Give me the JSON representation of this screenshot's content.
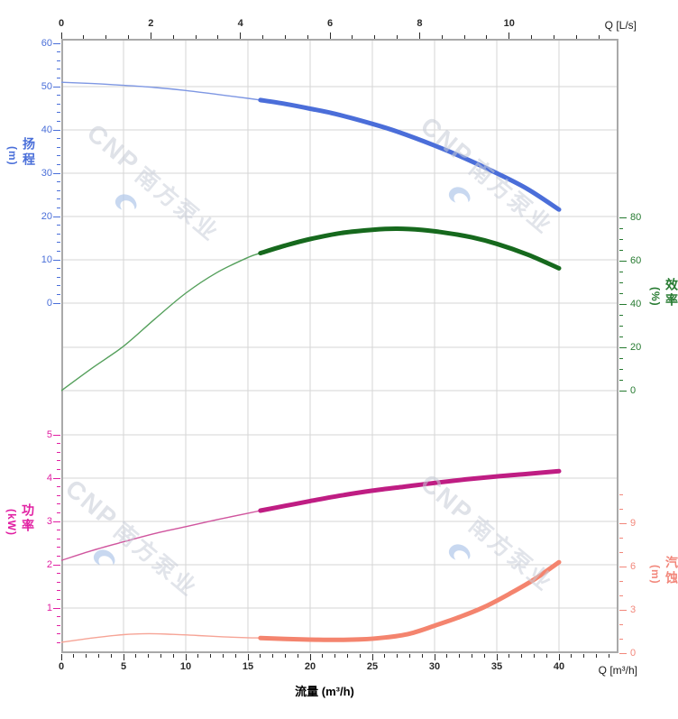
{
  "page": {
    "background": "#ffffff"
  },
  "watermark": {
    "brand": "CNP",
    "brand_cn": "南方泵业"
  },
  "chart_data": {
    "type": "line",
    "title": "",
    "xlabel": "流量 (m³/h)",
    "x_axis_top": {
      "label": "Q [L/s]",
      "majors": [
        0,
        2,
        4,
        6,
        8,
        10
      ],
      "minor_step": 0.5,
      "minor_range": [
        0,
        12
      ],
      "range": [
        0,
        12.44
      ],
      "color": "#2a2a2a"
    },
    "x_axis_bottom": {
      "label": "Q [m³/h]",
      "majors": [
        0,
        5,
        10,
        15,
        20,
        25,
        30,
        35,
        40
      ],
      "minor_step": 1,
      "minor_range": [
        0,
        44
      ],
      "range": [
        0,
        44.8
      ],
      "grid_ticks": [
        5,
        10,
        15,
        20,
        25,
        30,
        35,
        40
      ],
      "color": "#2a2a2a"
    },
    "y_axes": [
      {
        "id": "head",
        "side": "left",
        "name_cn": "扬程",
        "unit": "(m)",
        "color": "#4a6fd9",
        "majors": [
          60,
          50,
          40,
          30,
          20,
          10,
          0
        ],
        "minor_step": 2,
        "minor_range": [
          0,
          60
        ],
        "range": [
          0,
          61
        ],
        "grid_ticks": [
          50,
          40,
          30,
          20,
          10,
          0
        ]
      },
      {
        "id": "eff",
        "side": "right",
        "name_cn": "效率",
        "unit": "(%)",
        "color": "#267a30",
        "majors": [
          80,
          60,
          40,
          20,
          0
        ],
        "minor_step": 5,
        "minor_range": [
          0,
          80
        ],
        "range": [
          0,
          80
        ],
        "grid_ticks": [
          20,
          0
        ]
      },
      {
        "id": "power",
        "side": "left",
        "name_cn": "功率",
        "unit": "(kW)",
        "color": "#e11fa2",
        "majors": [
          5,
          4,
          3,
          2,
          1
        ],
        "minor_step": 0.2,
        "minor_range": [
          0.2,
          5
        ],
        "range": [
          0,
          5.9
        ],
        "grid_ticks": [
          5,
          4,
          3,
          2,
          1
        ]
      },
      {
        "id": "npsh",
        "side": "right",
        "name_cn": "汽蚀",
        "unit": "(m)",
        "color": "#f2877b",
        "majors": [
          9,
          6,
          3,
          0
        ],
        "minor_step": 1,
        "minor_range": [
          0,
          11
        ],
        "range": [
          0,
          11.2
        ],
        "grid_ticks": []
      }
    ],
    "series": [
      {
        "id": "head",
        "name": "扬程",
        "axis": "head",
        "emphasis_from_q": 16,
        "color_thin": "#7e97e3",
        "color_thick": "#4b6ed9",
        "points": [
          [
            0,
            51
          ],
          [
            2.5,
            50.7
          ],
          [
            5,
            50.3
          ],
          [
            7.5,
            49.8
          ],
          [
            10,
            49.1
          ],
          [
            12.5,
            48.2
          ],
          [
            15,
            47.3
          ],
          [
            16,
            46.9
          ],
          [
            18,
            46
          ],
          [
            20,
            44.9
          ],
          [
            22,
            43.7
          ],
          [
            25,
            41.4
          ],
          [
            27,
            39.6
          ],
          [
            30,
            36.4
          ],
          [
            32,
            34
          ],
          [
            35,
            30
          ],
          [
            37.5,
            26.3
          ],
          [
            40,
            21.6
          ]
        ]
      },
      {
        "id": "eff",
        "name": "效率",
        "axis": "eff",
        "emphasis_from_q": 16,
        "color_thin": "#55a05c",
        "color_thick": "#16691d",
        "points": [
          [
            0,
            0
          ],
          [
            2.5,
            10.5
          ],
          [
            5,
            20.5
          ],
          [
            7.5,
            33
          ],
          [
            10,
            45
          ],
          [
            12.5,
            54.5
          ],
          [
            15,
            61.5
          ],
          [
            16,
            63.5
          ],
          [
            18,
            67
          ],
          [
            20,
            70
          ],
          [
            22.5,
            72.8
          ],
          [
            25,
            74.3
          ],
          [
            27,
            74.8
          ],
          [
            29,
            74.2
          ],
          [
            31,
            72.8
          ],
          [
            33,
            70.8
          ],
          [
            35,
            67.8
          ],
          [
            37.5,
            62.8
          ],
          [
            40,
            56.5
          ]
        ]
      },
      {
        "id": "power",
        "name": "功率",
        "axis": "power",
        "emphasis_from_q": 16,
        "color_thin": "#d0559e",
        "color_thick": "#bf1d83",
        "points": [
          [
            0,
            2.1
          ],
          [
            2.5,
            2.33
          ],
          [
            5,
            2.53
          ],
          [
            7.5,
            2.72
          ],
          [
            10,
            2.88
          ],
          [
            12.5,
            3.04
          ],
          [
            15,
            3.19
          ],
          [
            16,
            3.25
          ],
          [
            18,
            3.36
          ],
          [
            20,
            3.47
          ],
          [
            22.5,
            3.6
          ],
          [
            25,
            3.71
          ],
          [
            27.5,
            3.8
          ],
          [
            30,
            3.89
          ],
          [
            32.5,
            3.97
          ],
          [
            35,
            4.04
          ],
          [
            37.5,
            4.1
          ],
          [
            40,
            4.16
          ]
        ]
      },
      {
        "id": "npsh",
        "name": "汽蚀",
        "axis": "npsh",
        "emphasis_from_q": 16,
        "color_thin": "#f6a496",
        "color_thick": "#f4846e",
        "points": [
          [
            0,
            0.75
          ],
          [
            2.5,
            1.05
          ],
          [
            5,
            1.28
          ],
          [
            7,
            1.35
          ],
          [
            9,
            1.3
          ],
          [
            11,
            1.22
          ],
          [
            13,
            1.13
          ],
          [
            15,
            1.07
          ],
          [
            16,
            1.05
          ],
          [
            18,
            0.98
          ],
          [
            20,
            0.94
          ],
          [
            22,
            0.92
          ],
          [
            24,
            0.95
          ],
          [
            26,
            1.08
          ],
          [
            28,
            1.35
          ],
          [
            30,
            1.9
          ],
          [
            32,
            2.5
          ],
          [
            34,
            3.2
          ],
          [
            36,
            4.1
          ],
          [
            38,
            5.1
          ],
          [
            40,
            6.3
          ]
        ]
      }
    ],
    "grid": true,
    "legend": "none"
  }
}
